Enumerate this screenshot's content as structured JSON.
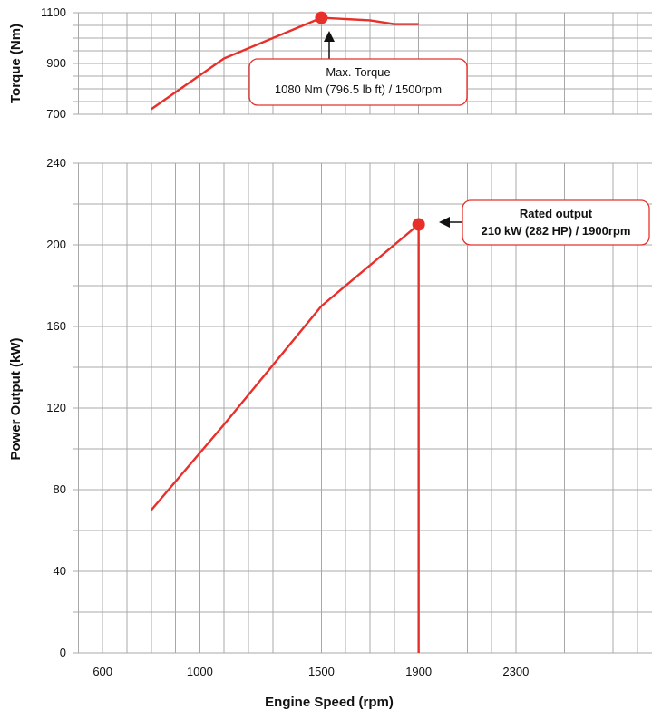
{
  "chart_data": [
    {
      "type": "line",
      "ylabel": "Torque (Nm)",
      "xlim": [
        480,
        2860
      ],
      "ylim": [
        700,
        1100
      ],
      "yticks": [
        700,
        900,
        1100
      ],
      "grid": true,
      "color": "#e8302b",
      "series": [
        {
          "x": [
            800,
            1100,
            1500,
            1700,
            1800,
            1900
          ],
          "values": [
            720,
            920,
            1080,
            1070,
            1055,
            1055
          ]
        }
      ],
      "annotations": [
        {
          "x": 1500,
          "y": 1080,
          "line1": "Max. Torque",
          "line2": "1080 Nm (796.5 lb ft) / 1500rpm"
        }
      ]
    },
    {
      "type": "line",
      "xlabel": "Engine Speed (rpm)",
      "ylabel": "Power Output (kW)",
      "xlim": [
        480,
        2860
      ],
      "ylim": [
        0,
        240
      ],
      "xticks": [
        600,
        1000,
        1500,
        1900,
        2300
      ],
      "yticks": [
        0,
        40,
        80,
        120,
        160,
        200,
        240
      ],
      "grid": true,
      "color": "#e8302b",
      "series": [
        {
          "x": [
            800,
            1100,
            1500,
            1900
          ],
          "values": [
            70,
            112,
            170,
            210
          ]
        }
      ],
      "vertical_line_x": 1900,
      "annotations": [
        {
          "x": 1900,
          "y": 210,
          "line1": "Rated output",
          "line2": "210 kW (282 HP) / 1900rpm"
        }
      ]
    }
  ]
}
